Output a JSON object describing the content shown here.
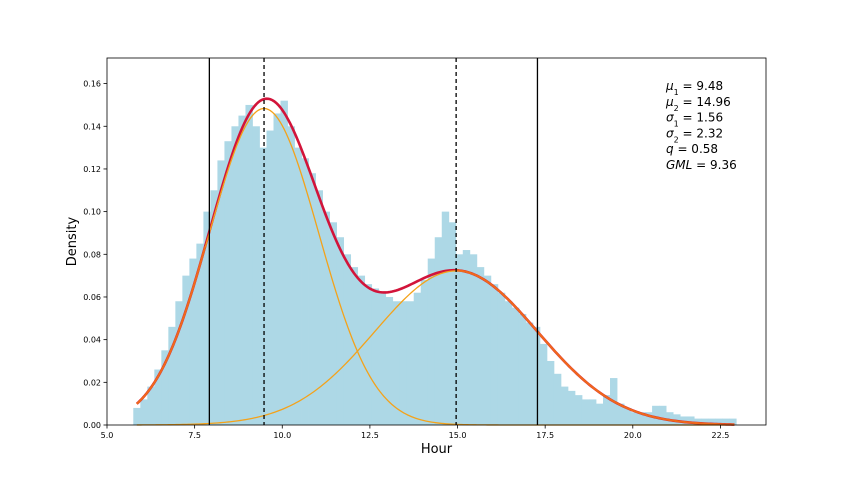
{
  "chart_data": {
    "type": "bar",
    "subtype": "histogram-with-mixture-fit",
    "xlabel": "Hour",
    "ylabel": "Density",
    "xlim": [
      5.0,
      23.8
    ],
    "ylim": [
      0.0,
      0.172
    ],
    "xticks": [
      5.0,
      7.5,
      10.0,
      12.5,
      15.0,
      17.5,
      20.0,
      22.5
    ],
    "yticks": [
      0.0,
      0.02,
      0.04,
      0.06,
      0.08,
      0.1,
      0.12,
      0.14,
      0.16
    ],
    "xtick_labels": [
      "5.0",
      "7.5",
      "10.0",
      "12.5",
      "15.0",
      "17.5",
      "20.0",
      "22.5"
    ],
    "ytick_labels": [
      "0.00",
      "0.02",
      "0.04",
      "0.06",
      "0.08",
      "0.10",
      "0.12",
      "0.14",
      "0.16"
    ],
    "grid": false,
    "histogram": {
      "x": [
        5.85,
        6.05,
        6.25,
        6.45,
        6.65,
        6.85,
        7.05,
        7.25,
        7.45,
        7.65,
        7.85,
        8.05,
        8.25,
        8.45,
        8.65,
        8.85,
        9.05,
        9.25,
        9.45,
        9.65,
        9.85,
        10.05,
        10.25,
        10.45,
        10.65,
        10.85,
        11.05,
        11.25,
        11.45,
        11.65,
        11.85,
        12.05,
        12.25,
        12.45,
        12.65,
        12.85,
        13.05,
        13.25,
        13.45,
        13.65,
        13.85,
        14.05,
        14.25,
        14.45,
        14.65,
        14.85,
        15.05,
        15.25,
        15.45,
        15.65,
        15.85,
        16.05,
        16.25,
        16.45,
        16.65,
        16.85,
        17.05,
        17.25,
        17.45,
        17.65,
        17.85,
        18.05,
        18.25,
        18.45,
        18.65,
        18.85,
        19.05,
        19.25,
        19.45,
        19.65,
        19.85,
        20.05,
        20.25,
        20.45,
        20.65,
        20.85,
        21.05,
        21.25,
        21.45,
        21.65,
        21.85,
        22.05,
        22.25,
        22.45,
        22.65,
        22.85
      ],
      "values": [
        0.008,
        0.012,
        0.018,
        0.026,
        0.035,
        0.046,
        0.058,
        0.07,
        0.078,
        0.085,
        0.1,
        0.11,
        0.124,
        0.133,
        0.14,
        0.145,
        0.15,
        0.14,
        0.13,
        0.138,
        0.146,
        0.152,
        0.14,
        0.13,
        0.125,
        0.118,
        0.11,
        0.1,
        0.095,
        0.088,
        0.08,
        0.074,
        0.07,
        0.066,
        0.064,
        0.062,
        0.06,
        0.058,
        0.058,
        0.058,
        0.062,
        0.068,
        0.078,
        0.088,
        0.1,
        0.095,
        0.08,
        0.082,
        0.08,
        0.074,
        0.07,
        0.066,
        0.062,
        0.058,
        0.055,
        0.052,
        0.048,
        0.046,
        0.038,
        0.03,
        0.024,
        0.018,
        0.016,
        0.014,
        0.012,
        0.012,
        0.01,
        0.014,
        0.022,
        0.01,
        0.008,
        0.006,
        0.006,
        0.006,
        0.009,
        0.009,
        0.006,
        0.005,
        0.004,
        0.004,
        0.003,
        0.003,
        0.003,
        0.003,
        0.003,
        0.003
      ],
      "color": "#add8e6"
    },
    "fit": {
      "mu1": 9.48,
      "mu2": 14.96,
      "sigma1": 1.56,
      "sigma2": 2.32,
      "q": 0.58,
      "x_start": 5.85,
      "x_end": 22.9
    },
    "series": [
      {
        "kind": "mixture",
        "color": "#d2143a"
      },
      {
        "kind": "component-1",
        "color": "#f4a21a"
      },
      {
        "kind": "component-2",
        "color": "#f4a21a"
      },
      {
        "kind": "tail-overlay",
        "color": "#f06a1a"
      }
    ],
    "vlines": [
      {
        "x": 7.92,
        "style": "solid",
        "color": "#000000"
      },
      {
        "x": 9.48,
        "style": "dashed",
        "color": "#000000"
      },
      {
        "x": 14.96,
        "style": "dashed",
        "color": "#000000"
      },
      {
        "x": 17.28,
        "style": "solid",
        "color": "#000000"
      }
    ],
    "annotations": [
      {
        "sym": "μ",
        "sub": "1",
        "value": " = 9.48"
      },
      {
        "sym": "μ",
        "sub": "2",
        "value": " = 14.96"
      },
      {
        "sym": "σ",
        "sub": "1",
        "value": " = 1.56"
      },
      {
        "sym": "σ",
        "sub": "2",
        "value": " = 2.32"
      },
      {
        "sym": "q",
        "sub": "",
        "value": " = 0.58"
      },
      {
        "sym": "GML",
        "sub": "",
        "value": " = 9.36"
      }
    ],
    "annotation_placement": "top-right"
  }
}
